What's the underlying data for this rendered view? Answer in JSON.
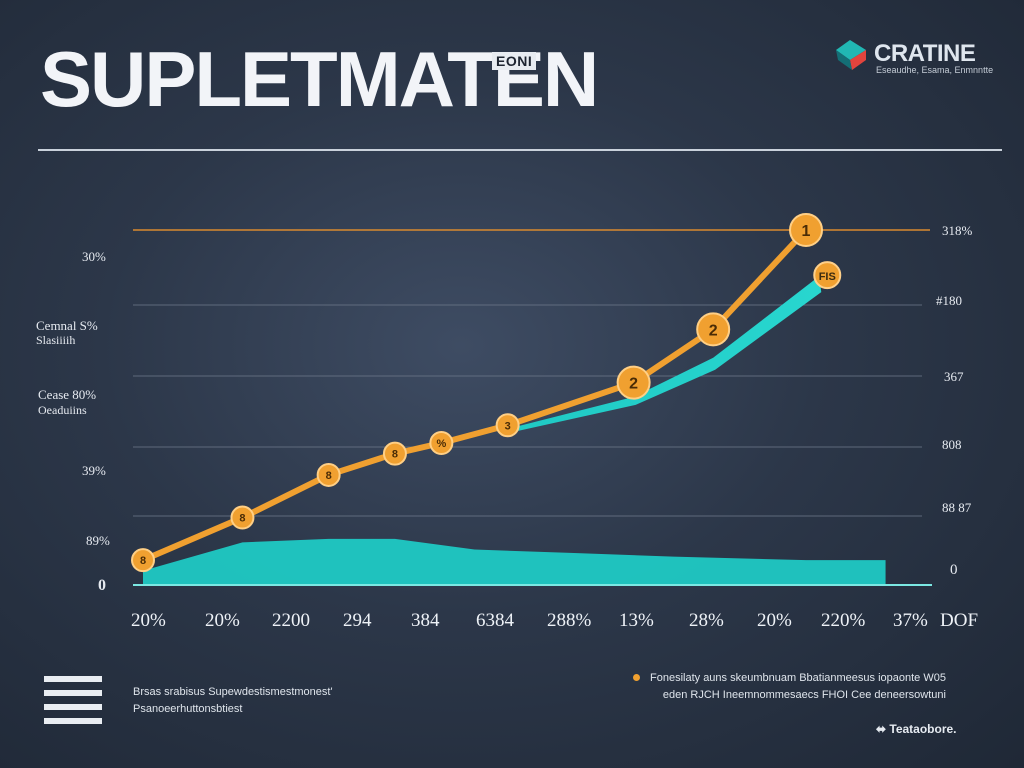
{
  "header": {
    "title": "SUPLETMATEN",
    "title_tag": "EONI",
    "brand_name": "CRATINE",
    "brand_sub": "Eseaudhe, Esama, Enmnntte"
  },
  "colors": {
    "orange": "#f0a030",
    "teal": "#1fc9c4",
    "grid": "#6b7688",
    "top_line": "#d98a2f"
  },
  "chart_data": {
    "type": "line",
    "title": "SUPLETMATEN",
    "x_labels": [
      "20%",
      "20%",
      "2200",
      "294",
      "384",
      "6384",
      "288%",
      "13%",
      "28%",
      "20%",
      "220%",
      "37%",
      "DOF"
    ],
    "y_labels_left": [
      "30%",
      "Cemnal S%",
      "Slasiiiih",
      "Cease 80%",
      "Oeaduiins",
      "39%",
      "89%",
      "0"
    ],
    "y_labels_right": [
      "318%",
      "#180",
      "367",
      "808",
      "88 87",
      "0"
    ],
    "ylim": [
      0,
      100
    ],
    "series": [
      {
        "color": "#f0a030",
        "points": [
          {
            "x": 0,
            "y": 7,
            "label": "8"
          },
          {
            "x": 1.5,
            "y": 19,
            "label": "8"
          },
          {
            "x": 2.8,
            "y": 31,
            "label": "8"
          },
          {
            "x": 3.8,
            "y": 37,
            "label": "8"
          },
          {
            "x": 4.5,
            "y": 40,
            "label": "%"
          },
          {
            "x": 5.5,
            "y": 45,
            "label": "3"
          },
          {
            "x": 7.4,
            "y": 57,
            "label": "2"
          },
          {
            "x": 8.6,
            "y": 72,
            "label": "2"
          },
          {
            "x": 10.0,
            "y": 100,
            "label": "1"
          }
        ]
      },
      {
        "color": "#1fc9c4",
        "band": [
          {
            "x": 0,
            "y": 4
          },
          {
            "x": 1.5,
            "y": 12
          },
          {
            "x": 2.8,
            "y": 13
          },
          {
            "x": 3.8,
            "y": 13
          },
          {
            "x": 5.0,
            "y": 10
          },
          {
            "x": 6.5,
            "y": 9
          },
          {
            "x": 8.0,
            "y": 8
          },
          {
            "x": 10.0,
            "y": 7
          },
          {
            "x": 11.2,
            "y": 7
          }
        ],
        "line": [
          {
            "x": 5.5,
            "y": 44
          },
          {
            "x": 7.4,
            "y": 53
          },
          {
            "x": 8.6,
            "y": 64
          },
          {
            "x": 10.2,
            "y": 87
          }
        ],
        "end_label": "FIS"
      }
    ]
  },
  "footer": {
    "left_line1": "Brsas srabisus Supewdestismestmonest'",
    "left_line2": "Psanoeerhuttonsbtiest",
    "right_line1": "Fonesilaty auns skeumbnuam Bbatianmeesus iopaonte W05",
    "right_line2": "eden RJCH Ineemnommesaecs FHOI Cee deneersowtuni",
    "brand": "Teataobore."
  }
}
